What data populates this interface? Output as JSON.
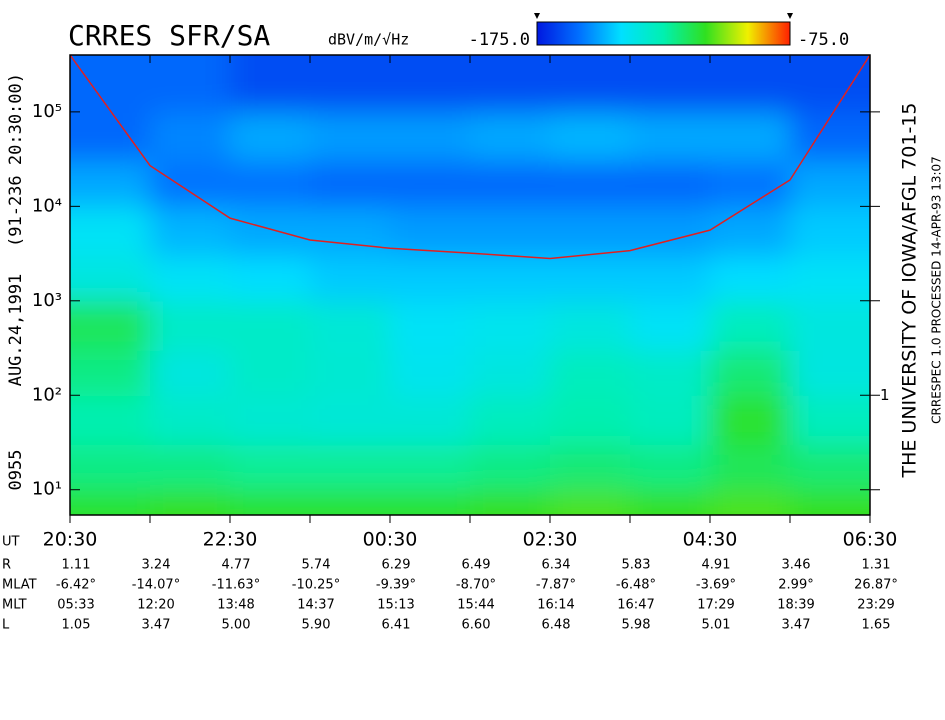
{
  "chart_data": {
    "type": "spectrogram",
    "title": "CRRES SFR/SA",
    "units": "dBV/m/√Hz",
    "left_labels": [
      "0955",
      "AUG.24,1991",
      "(91-236 20:30:00)"
    ],
    "right_labels": [
      "THE UNIVERSITY OF IOWA/AFGL 701-15",
      "CRRESPEC 1.0   PROCESSED 14-APR-93   13:07"
    ],
    "right_axis_label": "1",
    "x_axis_label": "UT",
    "categories": [
      "20:30",
      null,
      "22:30",
      null,
      "00:30",
      null,
      "02:30",
      null,
      "04:30",
      null,
      "06:30"
    ],
    "ylim": [
      5.4,
      400000
    ],
    "log_y": true,
    "yticks": [
      {
        "value": 10,
        "label": "10¹"
      },
      {
        "value": 100,
        "label": "10²"
      },
      {
        "value": 1000,
        "label": "10³"
      },
      {
        "value": 10000,
        "label": "10⁴"
      },
      {
        "value": 100000,
        "label": "10⁵"
      }
    ],
    "zlim": [
      -175,
      -75
    ],
    "zticks": [
      {
        "value": -175,
        "label": "-175.0"
      },
      {
        "value": -75,
        "label": "-75.0"
      }
    ],
    "colormap": [
      "#0018e0",
      "#0070ff",
      "#00e0ff",
      "#00f0b0",
      "#30e020",
      "#f0f000",
      "#ff2000"
    ],
    "ybins": [
      5.4,
      10,
      30,
      100,
      300,
      1000,
      3000,
      10000,
      30000,
      100000,
      400000
    ],
    "z": [
      [
        -110,
        -108,
        -110,
        -110,
        -110,
        -108,
        -106,
        -108,
        -106,
        -108
      ],
      [
        -120,
        -120,
        -122,
        -122,
        -122,
        -120,
        -118,
        -120,
        -115,
        -118
      ],
      [
        -125,
        -130,
        -132,
        -133,
        -133,
        -128,
        -125,
        -128,
        -110,
        -128
      ],
      [
        -120,
        -135,
        -130,
        -132,
        -138,
        -135,
        -128,
        -130,
        -118,
        -135
      ],
      [
        -115,
        -130,
        -130,
        -133,
        -140,
        -138,
        -135,
        -140,
        -128,
        -135
      ],
      [
        -135,
        -140,
        -142,
        -145,
        -145,
        -145,
        -145,
        -145,
        -142,
        -140
      ],
      [
        -140,
        -148,
        -150,
        -150,
        -152,
        -152,
        -152,
        -152,
        -150,
        -145
      ],
      [
        -150,
        -158,
        -158,
        -160,
        -160,
        -160,
        -160,
        -160,
        -158,
        -150
      ],
      [
        -160,
        -155,
        -150,
        -152,
        -152,
        -150,
        -148,
        -150,
        -150,
        -160
      ],
      [
        -160,
        -160,
        -165,
        -165,
        -165,
        -165,
        -165,
        -165,
        -165,
        -165
      ]
    ],
    "curve": {
      "color": "#e02020",
      "values": [
        400000,
        27000,
        7500,
        4400,
        3600,
        3200,
        2800,
        3400,
        5600,
        19000,
        400000
      ]
    },
    "ephemeris": [
      {
        "label": "R",
        "values": [
          "1.11",
          "3.24",
          "4.77",
          "5.74",
          "6.29",
          "6.49",
          "6.34",
          "5.83",
          "4.91",
          "3.46",
          "1.31"
        ]
      },
      {
        "label": "MLAT",
        "values": [
          "-6.42°",
          "-14.07°",
          "-11.63°",
          "-10.25°",
          "-9.39°",
          "-8.70°",
          "-7.87°",
          "-6.48°",
          "-3.69°",
          "2.99°",
          "26.87°"
        ]
      },
      {
        "label": "MLT",
        "values": [
          "05:33",
          "12:20",
          "13:48",
          "14:37",
          "15:13",
          "15:44",
          "16:14",
          "16:47",
          "17:29",
          "18:39",
          "23:29"
        ]
      },
      {
        "label": "L",
        "values": [
          "1.05",
          "3.47",
          "5.00",
          "5.90",
          "6.41",
          "6.60",
          "6.48",
          "5.98",
          "5.01",
          "3.47",
          "1.65"
        ]
      }
    ]
  }
}
